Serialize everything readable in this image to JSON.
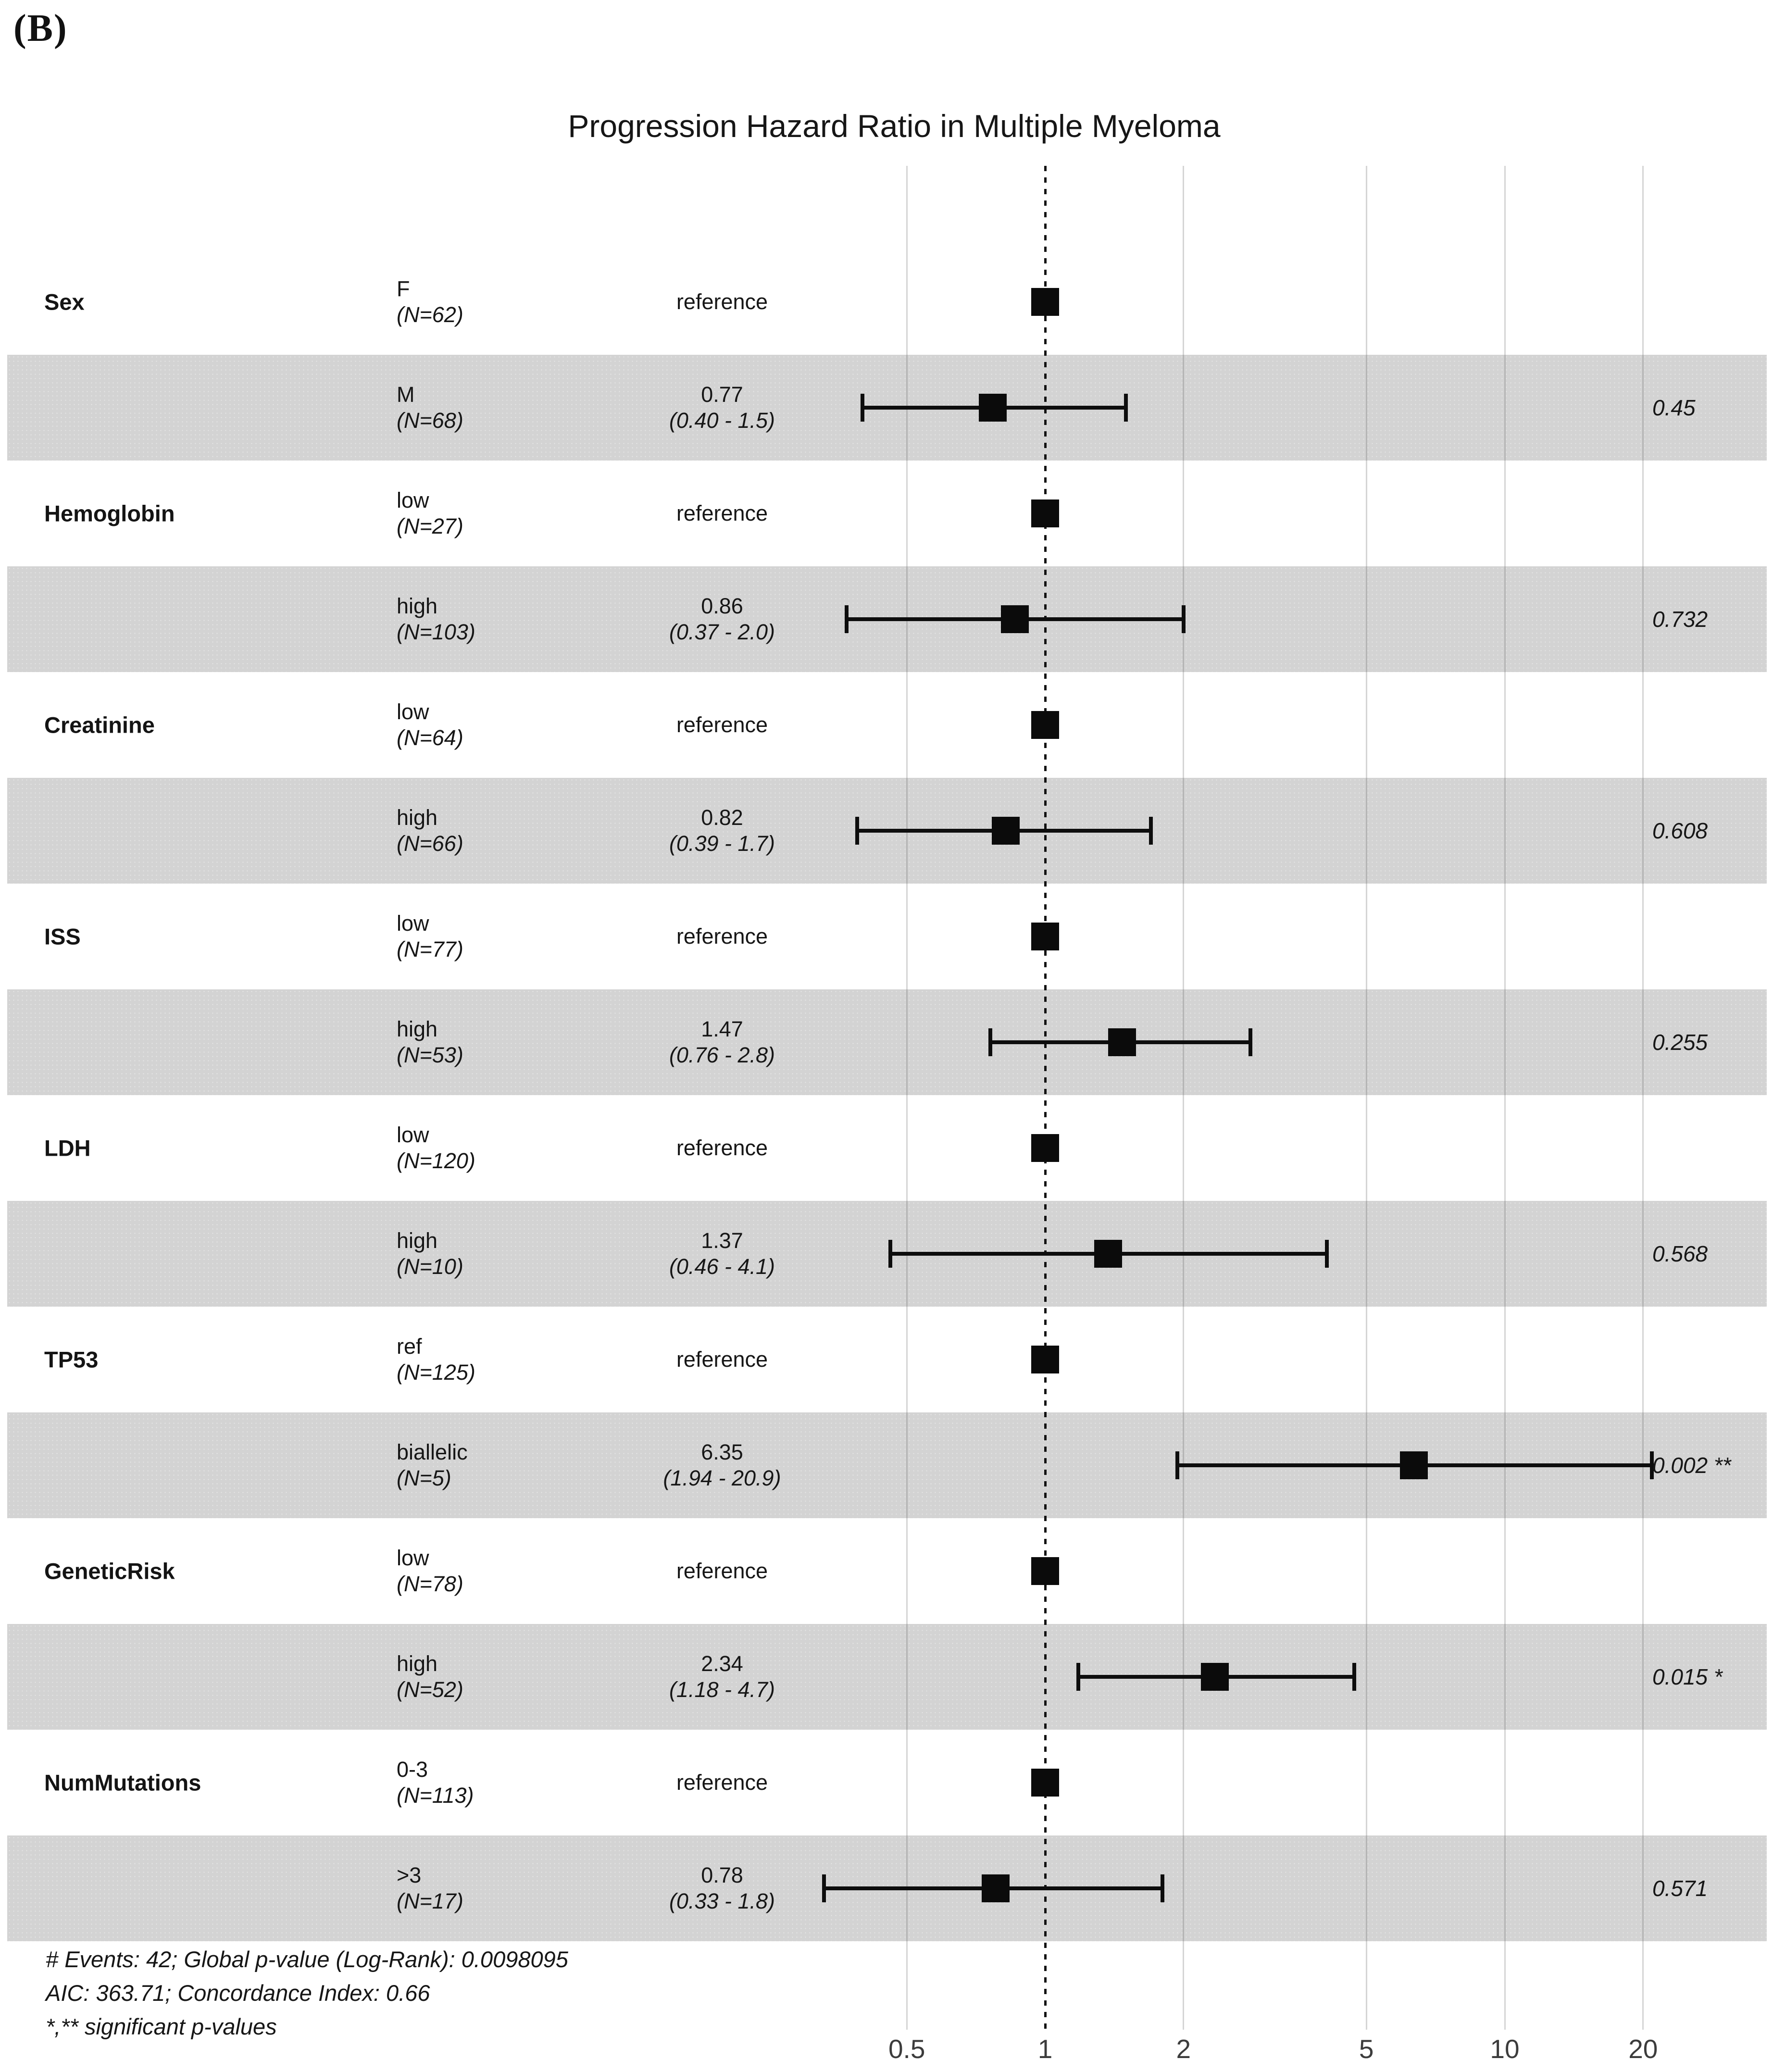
{
  "panel_label": "(B)",
  "title": "Progression Hazard Ratio in Multiple Myeloma",
  "footnotes": [
    "# Events: 42; Global p-value (Log-Rank): 0.0098095",
    "AIC: 363.71; Concordance Index: 0.66",
    "*,** significant p-values"
  ],
  "chart_data": {
    "type": "forest",
    "title": "Progression Hazard Ratio in Multiple Myeloma",
    "x_axis": {
      "scale": "log10",
      "ticks": [
        0.5,
        1,
        2,
        5,
        10,
        20
      ],
      "tick_labels": [
        "0.5",
        "1",
        "2",
        "5",
        "10",
        "20"
      ],
      "reference_value": 1,
      "range": [
        0.3,
        25
      ],
      "grid": true
    },
    "legend": "none",
    "shaded_row_color": "#d3d3d3",
    "marker_color": "#0b0b0b",
    "rows": [
      {
        "variable": "Sex",
        "level": "F",
        "n": "(N=62)",
        "estimate_label": "reference",
        "reference": true,
        "hr": 1,
        "shaded": false
      },
      {
        "variable": "",
        "level": "M",
        "n": "(N=68)",
        "estimate_label": "0.77",
        "ci_label": "(0.40 - 1.5)",
        "hr": 0.77,
        "ci_low": 0.4,
        "ci_high": 1.5,
        "p": "0.45",
        "shaded": true
      },
      {
        "variable": "Hemoglobin",
        "level": "low",
        "n": "(N=27)",
        "estimate_label": "reference",
        "reference": true,
        "hr": 1,
        "shaded": false
      },
      {
        "variable": "",
        "level": "high",
        "n": "(N=103)",
        "estimate_label": "0.86",
        "ci_label": "(0.37 - 2.0)",
        "hr": 0.86,
        "ci_low": 0.37,
        "ci_high": 2.0,
        "p": "0.732",
        "shaded": true
      },
      {
        "variable": "Creatinine",
        "level": "low",
        "n": "(N=64)",
        "estimate_label": "reference",
        "reference": true,
        "hr": 1,
        "shaded": false
      },
      {
        "variable": "",
        "level": "high",
        "n": "(N=66)",
        "estimate_label": "0.82",
        "ci_label": "(0.39 - 1.7)",
        "hr": 0.82,
        "ci_low": 0.39,
        "ci_high": 1.7,
        "p": "0.608",
        "shaded": true
      },
      {
        "variable": "ISS",
        "level": "low",
        "n": "(N=77)",
        "estimate_label": "reference",
        "reference": true,
        "hr": 1,
        "shaded": false
      },
      {
        "variable": "",
        "level": "high",
        "n": "(N=53)",
        "estimate_label": "1.47",
        "ci_label": "(0.76 - 2.8)",
        "hr": 1.47,
        "ci_low": 0.76,
        "ci_high": 2.8,
        "p": "0.255",
        "shaded": true
      },
      {
        "variable": "LDH",
        "level": "low",
        "n": "(N=120)",
        "estimate_label": "reference",
        "reference": true,
        "hr": 1,
        "shaded": false
      },
      {
        "variable": "",
        "level": "high",
        "n": "(N=10)",
        "estimate_label": "1.37",
        "ci_label": "(0.46 - 4.1)",
        "hr": 1.37,
        "ci_low": 0.46,
        "ci_high": 4.1,
        "p": "0.568",
        "shaded": true
      },
      {
        "variable": "TP53",
        "level": "ref",
        "n": "(N=125)",
        "estimate_label": "reference",
        "reference": true,
        "hr": 1,
        "shaded": false
      },
      {
        "variable": "",
        "level": "biallelic",
        "n": "(N=5)",
        "estimate_label": "6.35",
        "ci_label": "(1.94 - 20.9)",
        "hr": 6.35,
        "ci_low": 1.94,
        "ci_high": 20.9,
        "p": "0.002 **",
        "shaded": true
      },
      {
        "variable": "GeneticRisk",
        "level": "low",
        "n": "(N=78)",
        "estimate_label": "reference",
        "reference": true,
        "hr": 1,
        "shaded": false
      },
      {
        "variable": "",
        "level": "high",
        "n": "(N=52)",
        "estimate_label": "2.34",
        "ci_label": "(1.18 - 4.7)",
        "hr": 2.34,
        "ci_low": 1.18,
        "ci_high": 4.7,
        "p": "0.015 *",
        "shaded": true
      },
      {
        "variable": "NumMutations",
        "level": "0-3",
        "n": "(N=113)",
        "estimate_label": "reference",
        "reference": true,
        "hr": 1,
        "shaded": false
      },
      {
        "variable": "",
        "level": ">3",
        "n": "(N=17)",
        "estimate_label": "0.78",
        "ci_label": "(0.33 - 1.8)",
        "hr": 0.78,
        "ci_low": 0.33,
        "ci_high": 1.8,
        "p": "0.571",
        "shaded": true
      }
    ],
    "footnotes": [
      "# Events: 42; Global p-value (Log-Rank): 0.0098095",
      "AIC: 363.71; Concordance Index: 0.66",
      "*,** significant p-values"
    ]
  }
}
